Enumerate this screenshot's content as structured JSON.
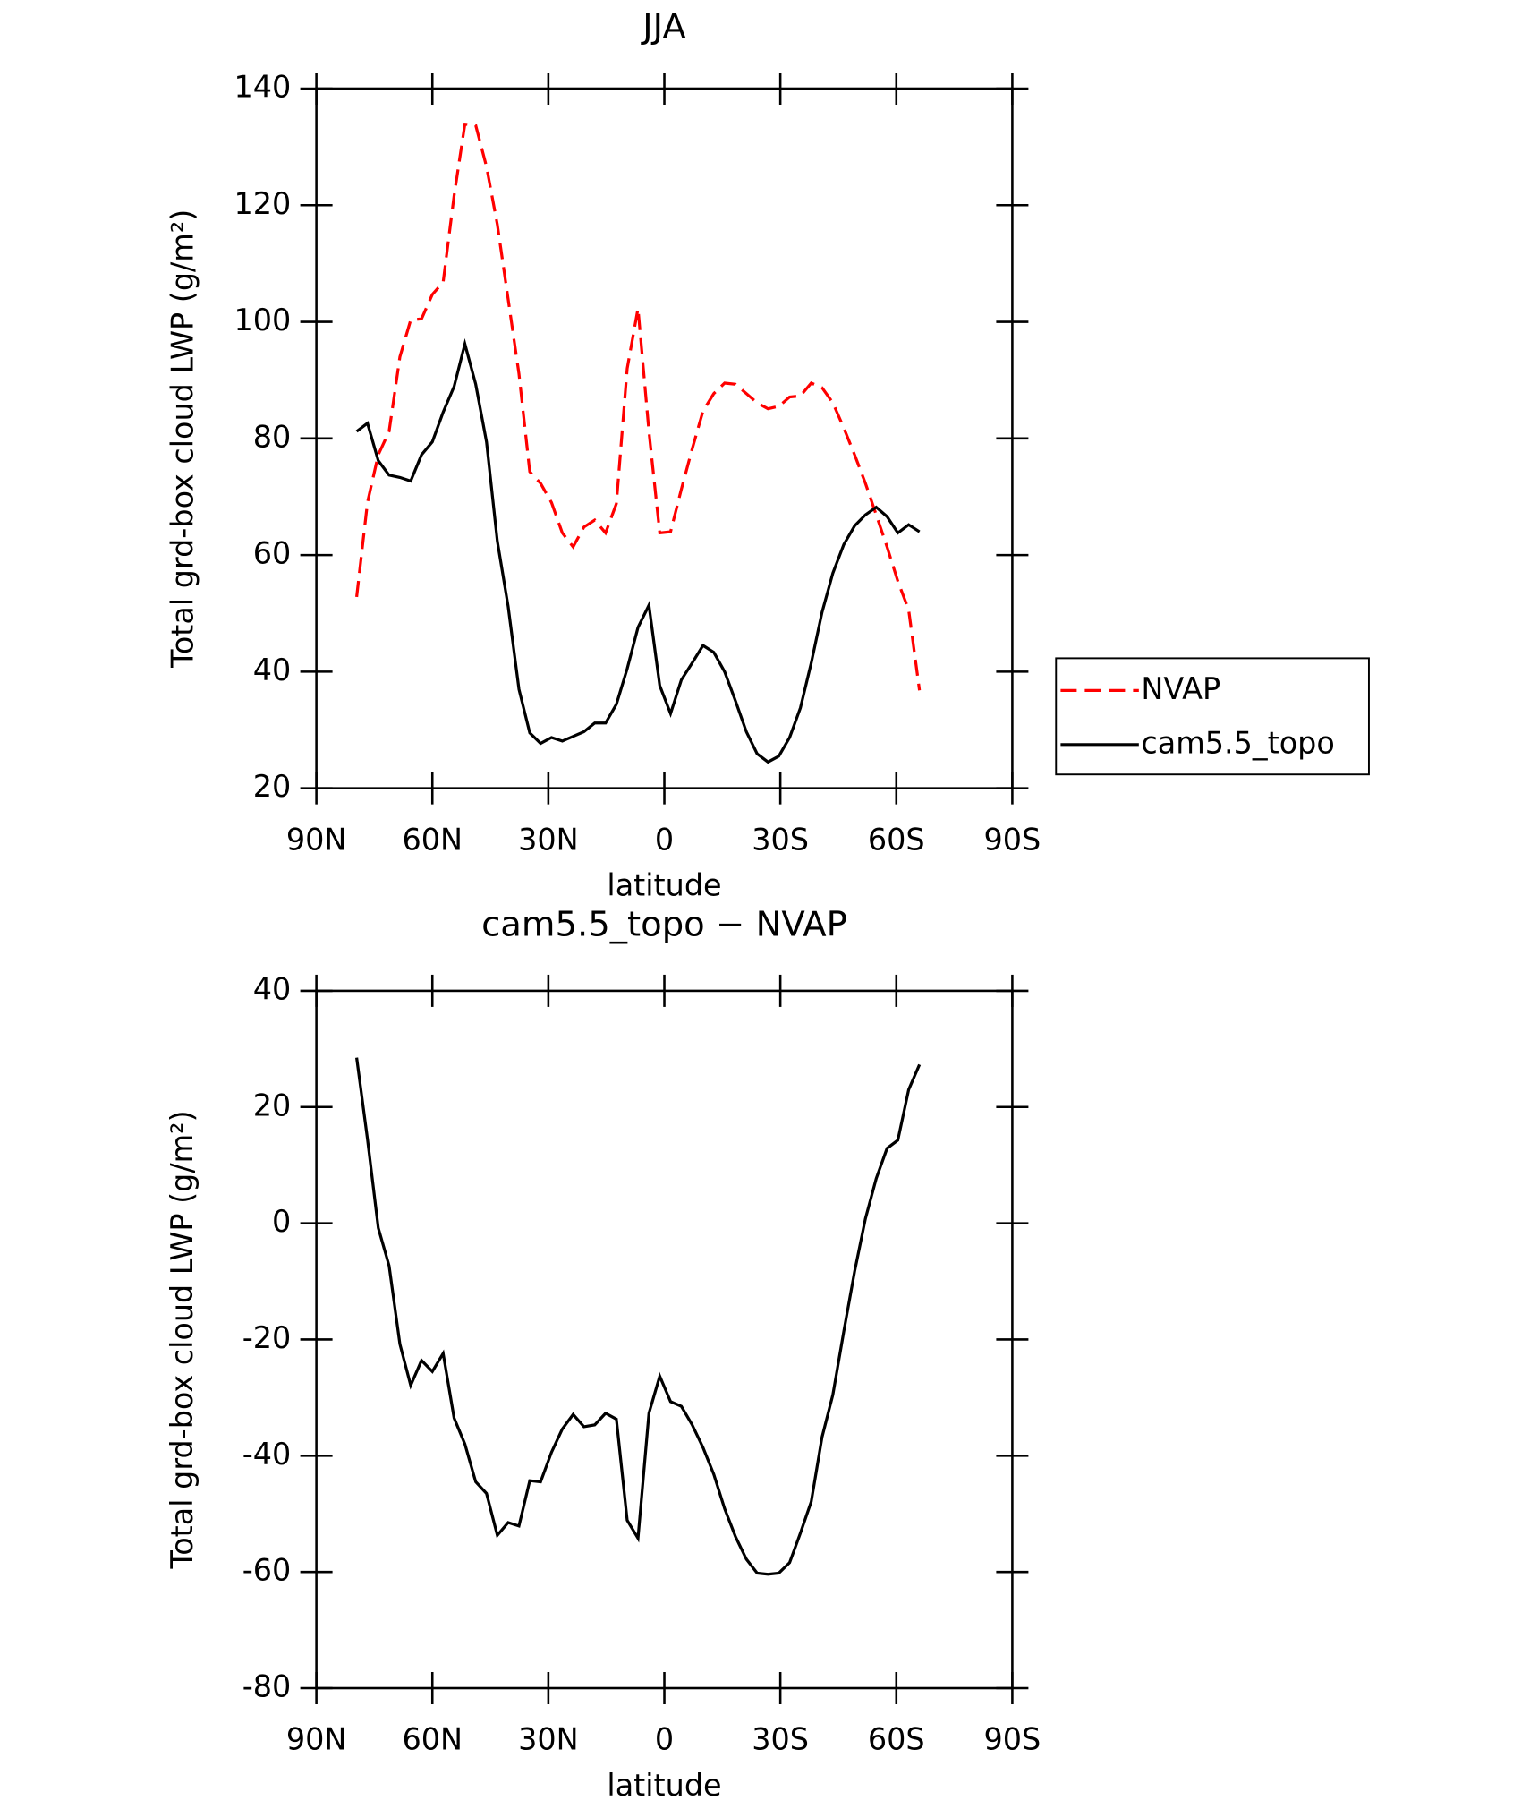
{
  "chart_data": [
    {
      "type": "line",
      "title": "JJA",
      "xlabel": "latitude",
      "ylabel": "Total grd-box cloud LWP (g/m²)",
      "x": [
        79.6,
        76.8,
        74.0,
        71.2,
        68.4,
        65.6,
        62.8,
        60.0,
        57.2,
        54.4,
        51.6,
        48.8,
        46.0,
        43.2,
        40.4,
        37.6,
        34.8,
        32.0,
        29.2,
        26.4,
        23.6,
        20.8,
        18.0,
        15.2,
        12.4,
        9.6,
        6.8,
        4.0,
        1.2,
        -1.6,
        -4.4,
        -7.2,
        -10.0,
        -12.8,
        -15.6,
        -18.4,
        -21.2,
        -24.0,
        -26.8,
        -29.6,
        -32.4,
        -35.2,
        -38.0,
        -40.8,
        -43.6,
        -46.4,
        -49.2,
        -52.0,
        -54.8,
        -57.6,
        -60.4,
        -63.2,
        -66.0
      ],
      "series": [
        {
          "name": "NVAP",
          "color": "#ff0000",
          "dash": true,
          "values": [
            52.8,
            69.0,
            77.2,
            81.2,
            94.0,
            100.3,
            100.5,
            104.7,
            106.8,
            121.6,
            133.9,
            133.7,
            126.6,
            116.7,
            103.9,
            91.1,
            74.3,
            72.3,
            69.0,
            63.8,
            61.4,
            64.8,
            66.0,
            63.8,
            68.8,
            92.0,
            102.3,
            81.2,
            63.8,
            64.0,
            71.3,
            78.2,
            84.7,
            87.7,
            89.5,
            89.3,
            87.7,
            86.1,
            85.1,
            85.5,
            87.1,
            87.3,
            89.5,
            88.7,
            86.1,
            81.8,
            77.2,
            72.3,
            66.9,
            61.4,
            55.5,
            50.6,
            36.8
          ]
        },
        {
          "name": "cam5.5_topo",
          "color": "#000000",
          "dash": false,
          "values": [
            81.2,
            82.6,
            76.2,
            73.7,
            73.3,
            72.7,
            77.2,
            79.4,
            84.5,
            88.9,
            96.2,
            89.3,
            79.4,
            62.4,
            51.2,
            37.0,
            29.5,
            27.7,
            28.7,
            28.1,
            28.9,
            29.7,
            31.2,
            31.2,
            34.4,
            40.5,
            47.6,
            51.4,
            37.6,
            32.8,
            38.6,
            41.5,
            44.5,
            43.3,
            40.0,
            35.0,
            29.7,
            25.9,
            24.5,
            25.5,
            28.7,
            33.8,
            41.5,
            50.2,
            56.9,
            61.8,
            65.0,
            66.9,
            68.2,
            66.6,
            63.8,
            65.2,
            64.0
          ]
        }
      ],
      "xlim": [
        90,
        -90
      ],
      "xticks": [
        {
          "value": 90,
          "label": "90N"
        },
        {
          "value": 60,
          "label": "60N"
        },
        {
          "value": 30,
          "label": "30N"
        },
        0,
        {
          "value": -30,
          "label": "30S"
        },
        {
          "value": -60,
          "label": "60S"
        },
        {
          "value": -90,
          "label": "90S"
        }
      ],
      "ylim": [
        20,
        140
      ],
      "yticks": [
        20,
        40,
        60,
        80,
        100,
        120,
        140
      ],
      "legend": "right"
    },
    {
      "type": "line",
      "title": "cam5.5_topo − NVAP",
      "xlabel": "latitude",
      "ylabel": "Total grd-box cloud LWP (g/m²)",
      "x": [
        79.6,
        76.8,
        74.0,
        71.2,
        68.4,
        65.6,
        62.8,
        60.0,
        57.2,
        54.4,
        51.6,
        48.8,
        46.0,
        43.2,
        40.4,
        37.6,
        34.8,
        32.0,
        29.2,
        26.4,
        23.6,
        20.8,
        18.0,
        15.2,
        12.4,
        9.6,
        6.8,
        4.0,
        1.2,
        -1.6,
        -4.4,
        -7.2,
        -10.0,
        -12.8,
        -15.6,
        -18.4,
        -21.2,
        -24.0,
        -26.8,
        -29.6,
        -32.4,
        -35.2,
        -38.0,
        -40.8,
        -43.6,
        -46.4,
        -49.2,
        -52.0,
        -54.8,
        -57.6,
        -60.4,
        -63.2,
        -66.0
      ],
      "series": [
        {
          "color": "#000000",
          "dash": false,
          "values": [
            28.5,
            14.5,
            -0.8,
            -7.3,
            -20.8,
            -27.9,
            -23.6,
            -25.5,
            -22.4,
            -33.5,
            -38.0,
            -44.5,
            -46.5,
            -53.7,
            -51.5,
            -52.1,
            -44.3,
            -44.5,
            -39.4,
            -35.4,
            -32.9,
            -35.0,
            -34.7,
            -32.7,
            -33.7,
            -51.1,
            -54.2,
            -32.7,
            -26.3,
            -30.7,
            -31.5,
            -34.7,
            -38.6,
            -43.2,
            -49.1,
            -53.9,
            -57.8,
            -60.2,
            -60.4,
            -60.2,
            -58.4,
            -53.3,
            -47.9,
            -36.8,
            -29.5,
            -18.6,
            -8.3,
            0.8,
            7.7,
            12.9,
            14.3,
            23.0,
            27.3
          ]
        }
      ],
      "xlim": [
        90,
        -90
      ],
      "xticks": [
        {
          "value": 90,
          "label": "90N"
        },
        {
          "value": 60,
          "label": "60N"
        },
        {
          "value": 30,
          "label": "30N"
        },
        0,
        {
          "value": -30,
          "label": "30S"
        },
        {
          "value": -60,
          "label": "60S"
        },
        {
          "value": -90,
          "label": "90S"
        }
      ],
      "ylim": [
        -80,
        40
      ],
      "yticks": [
        -80,
        -60,
        -40,
        -20,
        0,
        20,
        40
      ]
    }
  ]
}
